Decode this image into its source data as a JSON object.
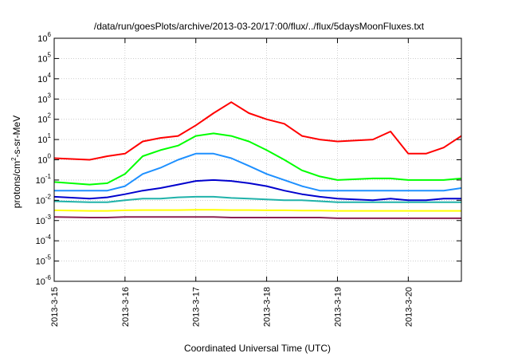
{
  "chart_data": {
    "type": "line",
    "title": "/data/run/goesPlots/archive/2013-03-20/17:00/flux/../flux/5daysMoonFluxes.txt",
    "xlabel": "Coordinated Universal Time (UTC)",
    "ylabel": "protons/cm2-s-sr-MeV",
    "ylabel_parts": {
      "pre": "protons/cm",
      "sup": "2",
      "post": "-s-sr-MeV"
    },
    "y_scale": "log",
    "ylim": [
      "1e-6",
      "1e6"
    ],
    "y_ticks": [
      {
        "base": "10",
        "exp": "6"
      },
      {
        "base": "10",
        "exp": "5"
      },
      {
        "base": "10",
        "exp": "4"
      },
      {
        "base": "10",
        "exp": "3"
      },
      {
        "base": "10",
        "exp": "2"
      },
      {
        "base": "10",
        "exp": "1"
      },
      {
        "base": "10",
        "exp": "0"
      },
      {
        "base": "10",
        "exp": "-1"
      },
      {
        "base": "10",
        "exp": "-2"
      },
      {
        "base": "10",
        "exp": "-3"
      },
      {
        "base": "10",
        "exp": "-4"
      },
      {
        "base": "10",
        "exp": "-5"
      },
      {
        "base": "10",
        "exp": "-6"
      }
    ],
    "xlim": [
      "2013-3-15",
      "2013-3-20 18:00"
    ],
    "x_ticks": [
      "2013-3-15",
      "2013-3-16",
      "2013-3-17",
      "2013-3-18",
      "2013-3-19",
      "2013-3-20"
    ],
    "grid": true,
    "series": [
      {
        "color": "#ff0000",
        "x": [
          "2013-3-15",
          "2013-3-15 12:00",
          "2013-3-15 18:00",
          "2013-3-16",
          "2013-3-16 06:00",
          "2013-3-16 12:00",
          "2013-3-16 18:00",
          "2013-3-17",
          "2013-3-17 06:00",
          "2013-3-17 12:00",
          "2013-3-17 18:00",
          "2013-3-18",
          "2013-3-18 06:00",
          "2013-3-18 12:00",
          "2013-3-18 18:00",
          "2013-3-19",
          "2013-3-19 12:00",
          "2013-3-19 18:00",
          "2013-3-20",
          "2013-3-20 06:00",
          "2013-3-20 12:00",
          "2013-3-20 18:00"
        ],
        "y": [
          1.2,
          1.0,
          1.5,
          2.0,
          8,
          12,
          15,
          50,
          200,
          700,
          200,
          100,
          60,
          15,
          10,
          8,
          10,
          25,
          2,
          2,
          4,
          15
        ]
      },
      {
        "color": "#00ff00",
        "x": [
          "2013-3-15",
          "2013-3-15 12:00",
          "2013-3-15 18:00",
          "2013-3-16",
          "2013-3-16 06:00",
          "2013-3-16 12:00",
          "2013-3-16 18:00",
          "2013-3-17",
          "2013-3-17 06:00",
          "2013-3-17 12:00",
          "2013-3-17 18:00",
          "2013-3-18",
          "2013-3-18 06:00",
          "2013-3-18 12:00",
          "2013-3-18 18:00",
          "2013-3-19",
          "2013-3-19 12:00",
          "2013-3-19 18:00",
          "2013-3-20",
          "2013-3-20 06:00",
          "2013-3-20 12:00",
          "2013-3-20 18:00"
        ],
        "y": [
          0.08,
          0.06,
          0.07,
          0.2,
          1.5,
          3,
          5,
          15,
          20,
          15,
          8,
          3,
          1.0,
          0.3,
          0.15,
          0.1,
          0.12,
          0.12,
          0.1,
          0.1,
          0.1,
          0.12
        ]
      },
      {
        "color": "#1e90ff",
        "x": [
          "2013-3-15",
          "2013-3-15 12:00",
          "2013-3-15 18:00",
          "2013-3-16",
          "2013-3-16 06:00",
          "2013-3-16 12:00",
          "2013-3-16 18:00",
          "2013-3-17",
          "2013-3-17 06:00",
          "2013-3-17 12:00",
          "2013-3-17 18:00",
          "2013-3-18",
          "2013-3-18 06:00",
          "2013-3-18 12:00",
          "2013-3-18 18:00",
          "2013-3-19",
          "2013-3-19 12:00",
          "2013-3-19 18:00",
          "2013-3-20",
          "2013-3-20 06:00",
          "2013-3-20 12:00",
          "2013-3-20 18:00"
        ],
        "y": [
          0.03,
          0.03,
          0.03,
          0.05,
          0.2,
          0.4,
          1.0,
          2.0,
          2.0,
          1.2,
          0.5,
          0.2,
          0.1,
          0.05,
          0.03,
          0.03,
          0.03,
          0.03,
          0.03,
          0.03,
          0.03,
          0.04
        ]
      },
      {
        "color": "#0000cd",
        "x": [
          "2013-3-15",
          "2013-3-15 12:00",
          "2013-3-15 18:00",
          "2013-3-16",
          "2013-3-16 06:00",
          "2013-3-16 12:00",
          "2013-3-16 18:00",
          "2013-3-17",
          "2013-3-17 06:00",
          "2013-3-17 12:00",
          "2013-3-17 18:00",
          "2013-3-18",
          "2013-3-18 06:00",
          "2013-3-18 12:00",
          "2013-3-18 18:00",
          "2013-3-19",
          "2013-3-19 12:00",
          "2013-3-19 18:00",
          "2013-3-20",
          "2013-3-20 06:00",
          "2013-3-20 12:00",
          "2013-3-20 18:00"
        ],
        "y": [
          0.015,
          0.012,
          0.014,
          0.02,
          0.03,
          0.04,
          0.06,
          0.09,
          0.1,
          0.09,
          0.07,
          0.05,
          0.03,
          0.02,
          0.015,
          0.012,
          0.01,
          0.012,
          0.01,
          0.01,
          0.012,
          0.012
        ]
      },
      {
        "color": "#20b2aa",
        "x": [
          "2013-3-15",
          "2013-3-15 12:00",
          "2013-3-15 18:00",
          "2013-3-16",
          "2013-3-16 06:00",
          "2013-3-16 12:00",
          "2013-3-16 18:00",
          "2013-3-17",
          "2013-3-17 06:00",
          "2013-3-17 12:00",
          "2013-3-17 18:00",
          "2013-3-18",
          "2013-3-18 06:00",
          "2013-3-18 12:00",
          "2013-3-18 18:00",
          "2013-3-19",
          "2013-3-19 12:00",
          "2013-3-19 18:00",
          "2013-3-20",
          "2013-3-20 06:00",
          "2013-3-20 12:00",
          "2013-3-20 18:00"
        ],
        "y": [
          0.009,
          0.008,
          0.008,
          0.01,
          0.012,
          0.012,
          0.014,
          0.015,
          0.015,
          0.013,
          0.012,
          0.011,
          0.01,
          0.01,
          0.009,
          0.008,
          0.008,
          0.008,
          0.008,
          0.008,
          0.008,
          0.008
        ]
      },
      {
        "color": "#ffff00",
        "x": [
          "2013-3-15",
          "2013-3-15 12:00",
          "2013-3-15 18:00",
          "2013-3-16",
          "2013-3-16 06:00",
          "2013-3-16 12:00",
          "2013-3-16 18:00",
          "2013-3-17",
          "2013-3-17 06:00",
          "2013-3-17 12:00",
          "2013-3-17 18:00",
          "2013-3-18",
          "2013-3-18 06:00",
          "2013-3-18 12:00",
          "2013-3-18 18:00",
          "2013-3-19",
          "2013-3-19 12:00",
          "2013-3-19 18:00",
          "2013-3-20",
          "2013-3-20 06:00",
          "2013-3-20 12:00",
          "2013-3-20 18:00"
        ],
        "y": [
          0.0032,
          0.003,
          0.003,
          0.0032,
          0.0033,
          0.0033,
          0.0033,
          0.0034,
          0.0034,
          0.0033,
          0.0033,
          0.0032,
          0.0032,
          0.0031,
          0.0031,
          0.003,
          0.003,
          0.003,
          0.003,
          0.003,
          0.003,
          0.003
        ]
      },
      {
        "color": "#8b2252",
        "x": [
          "2013-3-15",
          "2013-3-15 12:00",
          "2013-3-15 18:00",
          "2013-3-16",
          "2013-3-16 06:00",
          "2013-3-16 12:00",
          "2013-3-16 18:00",
          "2013-3-17",
          "2013-3-17 06:00",
          "2013-3-17 12:00",
          "2013-3-17 18:00",
          "2013-3-18",
          "2013-3-18 06:00",
          "2013-3-18 12:00",
          "2013-3-18 18:00",
          "2013-3-19",
          "2013-3-19 12:00",
          "2013-3-19 18:00",
          "2013-3-20",
          "2013-3-20 06:00",
          "2013-3-20 12:00",
          "2013-3-20 18:00"
        ],
        "y": [
          0.0015,
          0.0014,
          0.0014,
          0.0015,
          0.0015,
          0.0015,
          0.0015,
          0.0015,
          0.0015,
          0.0014,
          0.0014,
          0.0014,
          0.0014,
          0.0014,
          0.0014,
          0.0013,
          0.0013,
          0.0013,
          0.0013,
          0.0013,
          0.0013,
          0.0013
        ]
      }
    ]
  }
}
